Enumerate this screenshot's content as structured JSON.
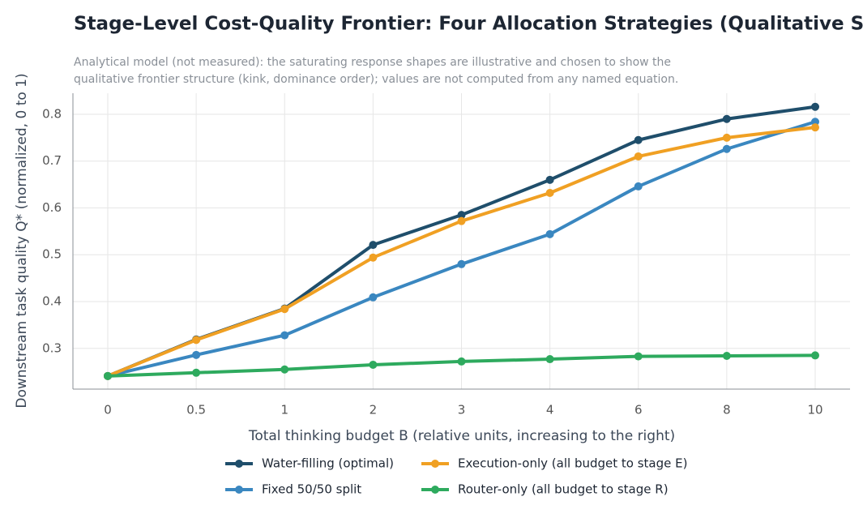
{
  "chart_data": {
    "type": "line",
    "title": "Stage-Level Cost-Quality Frontier: Four Allocation Strategies (Qualitative Shape)",
    "subtitle": [
      "Analytical model (not measured): the saturating response shapes are illustrative and chosen to show the",
      "qualitative frontier structure (kink, dominance order); values are not computed from any named equation."
    ],
    "x_label": "Total thinking budget B (relative units, increasing to the right)",
    "y_label": "Downstream task quality Q* (normalized, 0 to 1)",
    "categories": [
      "0",
      "0.5",
      "1",
      "2",
      "3",
      "4",
      "6",
      "8",
      "10"
    ],
    "series": [
      {
        "name": "Water-filling (optimal)",
        "color": "#1f4e6b",
        "values": [
          0.241,
          0.319,
          0.385,
          0.521,
          0.585,
          0.66,
          0.745,
          0.79,
          0.816
        ]
      },
      {
        "name": "Fixed 50/50 split",
        "color": "#3a87c0",
        "values": [
          0.241,
          0.286,
          0.328,
          0.409,
          0.48,
          0.544,
          0.646,
          0.726,
          0.784
        ]
      },
      {
        "name": "Execution-only (all budget to stage E)",
        "color": "#f0a023",
        "values": [
          0.241,
          0.318,
          0.384,
          0.494,
          0.572,
          0.632,
          0.71,
          0.75,
          0.772
        ]
      },
      {
        "name": "Router-only (all budget to stage R)",
        "color": "#2eaa5e",
        "values": [
          0.241,
          0.248,
          0.255,
          0.265,
          0.272,
          0.277,
          0.283,
          0.284,
          0.285
        ]
      }
    ],
    "ylim": [
      0.213,
      0.845
    ],
    "yticks": [
      0.3,
      0.4,
      0.5,
      0.6,
      0.7,
      0.8
    ],
    "grid": true,
    "legend": "bottom"
  }
}
